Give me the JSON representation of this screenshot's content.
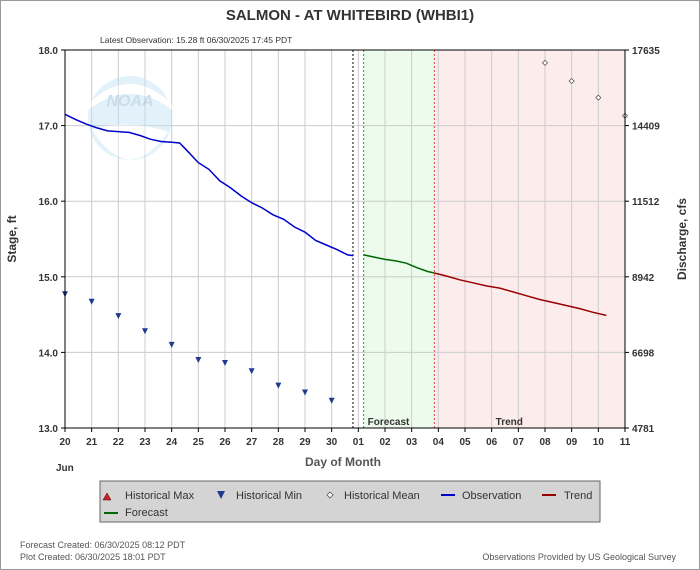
{
  "chart_data": {
    "type": "line",
    "title": "SALMON - AT WHITEBIRD  (WHBI1)",
    "subtitle": "Latest Observation:  15.28 ft 06/30/2025 17:45 PDT",
    "xlabel": "Day of Month",
    "ylabel": "Stage, ft",
    "y2label": "Discharge, cfs",
    "month_label": "Jun",
    "x_ticks": [
      "20",
      "21",
      "22",
      "23",
      "24",
      "25",
      "26",
      "27",
      "28",
      "29",
      "30",
      "01",
      "02",
      "03",
      "04",
      "05",
      "06",
      "07",
      "08",
      "09",
      "10",
      "11"
    ],
    "y_ticks": [
      13.0,
      14.0,
      15.0,
      16.0,
      17.0,
      18.0
    ],
    "y_tick_labels": [
      "13.0",
      "14.0",
      "15.0",
      "16.0",
      "17.0",
      "18.0"
    ],
    "y2_ticks": [
      {
        "stage": 13.0,
        "label": "4781"
      },
      {
        "stage": 14.0,
        "label": "6698"
      },
      {
        "stage": 15.0,
        "label": "8942"
      },
      {
        "stage": 16.0,
        "label": "11512"
      },
      {
        "stage": 17.0,
        "label": "14409"
      },
      {
        "stage": 18.0,
        "label": "17635"
      }
    ],
    "xlim": [
      0,
      21
    ],
    "ylim": [
      13.0,
      18.0
    ],
    "grid": true,
    "regions": [
      {
        "name": "Forecast",
        "from": 11.2,
        "to": 13.85
      },
      {
        "name": "Trend",
        "from": 13.85,
        "to": 21.0
      }
    ],
    "now_marker_day": 10.8,
    "series": [
      {
        "name": "Observation",
        "color": "#0000cc",
        "x": [
          0,
          0.4,
          0.8,
          1.2,
          1.6,
          2.0,
          2.4,
          2.8,
          3.2,
          3.6,
          4.0,
          4.3,
          4.6,
          5.0,
          5.4,
          5.8,
          6.2,
          6.6,
          7.0,
          7.4,
          7.8,
          8.2,
          8.6,
          9.0,
          9.4,
          9.8,
          10.2,
          10.6,
          10.8
        ],
        "y": [
          17.15,
          17.08,
          17.02,
          16.97,
          16.93,
          16.92,
          16.91,
          16.87,
          16.82,
          16.79,
          16.78,
          16.77,
          16.66,
          16.51,
          16.42,
          16.27,
          16.18,
          16.07,
          15.98,
          15.91,
          15.82,
          15.76,
          15.66,
          15.59,
          15.48,
          15.42,
          15.36,
          15.29,
          15.28
        ]
      },
      {
        "name": "Forecast",
        "color": "#006600",
        "x": [
          11.2,
          11.6,
          12.0,
          12.4,
          12.8,
          13.2,
          13.6,
          13.85
        ],
        "y": [
          15.29,
          15.26,
          15.23,
          15.21,
          15.18,
          15.12,
          15.07,
          15.05
        ]
      },
      {
        "name": "Trend",
        "color": "#990000",
        "x": [
          13.85,
          14.3,
          14.8,
          15.3,
          15.8,
          16.3,
          16.8,
          17.3,
          17.8,
          18.3,
          18.8,
          19.3,
          19.8,
          20.3
        ],
        "y": [
          15.05,
          15.01,
          14.96,
          14.92,
          14.88,
          14.85,
          14.8,
          14.75,
          14.7,
          14.66,
          14.62,
          14.58,
          14.53,
          14.49
        ]
      }
    ],
    "historical_min": {
      "name": "Historical Min",
      "color": "#1f3a8f",
      "x": [
        0,
        1,
        2,
        3,
        4,
        5,
        6,
        7,
        8,
        9,
        10
      ],
      "y": [
        14.77,
        14.67,
        14.48,
        14.28,
        14.1,
        13.9,
        13.86,
        13.75,
        13.56,
        13.47,
        13.36
      ]
    },
    "historical_mean": {
      "name": "Historical Mean",
      "color": "#555555",
      "x": [
        18,
        19,
        20,
        21
      ],
      "y": [
        17.83,
        17.59,
        17.37,
        17.13
      ]
    },
    "legend": {
      "position": "bottom",
      "items": [
        {
          "name": "Historical Max",
          "symbol": "up-triangle",
          "color": "#cc2222"
        },
        {
          "name": "Historical Min",
          "symbol": "down-triangle",
          "color": "#1f3a8f"
        },
        {
          "name": "Historical Mean",
          "symbol": "diamond",
          "color": "#555555"
        },
        {
          "name": "Observation",
          "symbol": "line",
          "color": "#0000cc"
        },
        {
          "name": "Trend",
          "symbol": "line",
          "color": "#990000"
        },
        {
          "name": "Forecast",
          "symbol": "line",
          "color": "#006600"
        }
      ]
    }
  },
  "footer": {
    "forecast_created": "Forecast Created: 06/30/2025 08:12 PDT",
    "plot_created": "Plot Created: 06/30/2025 18:01 PDT",
    "provider": "Observations Provided by US Geological Survey"
  },
  "logo": {
    "text": "NOAA"
  }
}
